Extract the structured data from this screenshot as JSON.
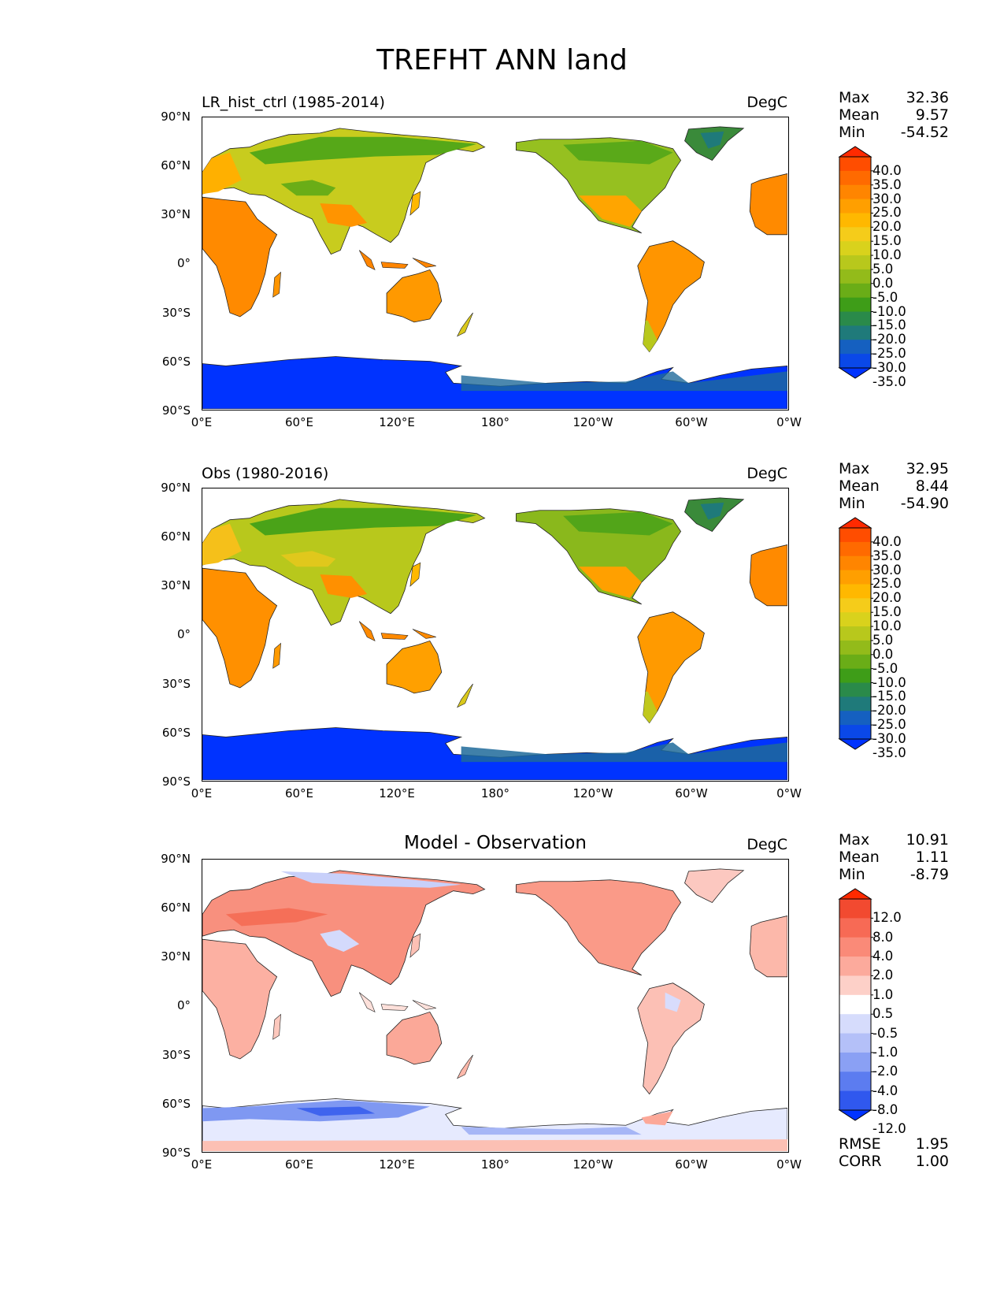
{
  "figure": {
    "title": "TREFHT ANN land"
  },
  "axes": {
    "y_ticks": [
      "90°N",
      "60°N",
      "30°N",
      "0°",
      "30°S",
      "60°S",
      "90°S"
    ],
    "x_ticks": [
      "0°E",
      "60°E",
      "120°E",
      "180°",
      "120°W",
      "60°W",
      "0°W"
    ]
  },
  "panels": [
    {
      "title": "LR_hist_ctrl (1985-2014)",
      "units": "DegC",
      "stats": {
        "max_label": "Max",
        "max": "32.36",
        "mean_label": "Mean",
        "mean": "9.57",
        "min_label": "Min",
        "min": "-54.52"
      },
      "colorbar": {
        "levels": [
          "40.0",
          "35.0",
          "30.0",
          "25.0",
          "20.0",
          "15.0",
          "10.0",
          "5.0",
          "0.0",
          "-5.0",
          "-10.0",
          "-15.0",
          "-20.0",
          "-25.0",
          "-30.0",
          "-35.0"
        ],
        "colors": [
          "#ff2a00",
          "#ff4d00",
          "#ff6a00",
          "#ff8500",
          "#ff9f00",
          "#ffb800",
          "#f5cc1a",
          "#d9d21c",
          "#b8c81c",
          "#93bb1a",
          "#6aad17",
          "#3e9d18",
          "#2a8a4a",
          "#1f7a7a",
          "#1560c0",
          "#0a48e8",
          "#0033ff"
        ]
      },
      "extra": null
    },
    {
      "title": "Obs (1980-2016)",
      "units": "DegC",
      "stats": {
        "max_label": "Max",
        "max": "32.95",
        "mean_label": "Mean",
        "mean": "8.44",
        "min_label": "Min",
        "min": "-54.90"
      },
      "colorbar": {
        "levels": [
          "40.0",
          "35.0",
          "30.0",
          "25.0",
          "20.0",
          "15.0",
          "10.0",
          "5.0",
          "0.0",
          "-5.0",
          "-10.0",
          "-15.0",
          "-20.0",
          "-25.0",
          "-30.0",
          "-35.0"
        ],
        "colors": [
          "#ff2a00",
          "#ff4d00",
          "#ff6a00",
          "#ff8500",
          "#ff9f00",
          "#ffb800",
          "#f5cc1a",
          "#d9d21c",
          "#b8c81c",
          "#93bb1a",
          "#6aad17",
          "#3e9d18",
          "#2a8a4a",
          "#1f7a7a",
          "#1560c0",
          "#0a48e8",
          "#0033ff"
        ]
      },
      "extra": null
    },
    {
      "title": "Model - Observation",
      "units": "DegC",
      "stats": {
        "max_label": "Max",
        "max": "10.91",
        "mean_label": "Mean",
        "mean": "1.11",
        "min_label": "Min",
        "min": "-8.79"
      },
      "colorbar": {
        "levels": [
          "12.0",
          "8.0",
          "4.0",
          "2.0",
          "1.0",
          "0.5",
          "-0.5",
          "-1.0",
          "-2.0",
          "-4.0",
          "-8.0",
          "-12.0"
        ],
        "colors": [
          "#ff2a00",
          "#f24a30",
          "#f76a55",
          "#fa8a78",
          "#fcaa9c",
          "#fdd0c8",
          "#ffffff",
          "#d6dcfc",
          "#b4c0f8",
          "#8aa0f4",
          "#5c7cf0",
          "#3058ee",
          "#0033ff"
        ]
      },
      "extra": {
        "rmse_label": "RMSE",
        "rmse": "1.95",
        "corr_label": "CORR",
        "corr": "1.00"
      }
    }
  ]
}
